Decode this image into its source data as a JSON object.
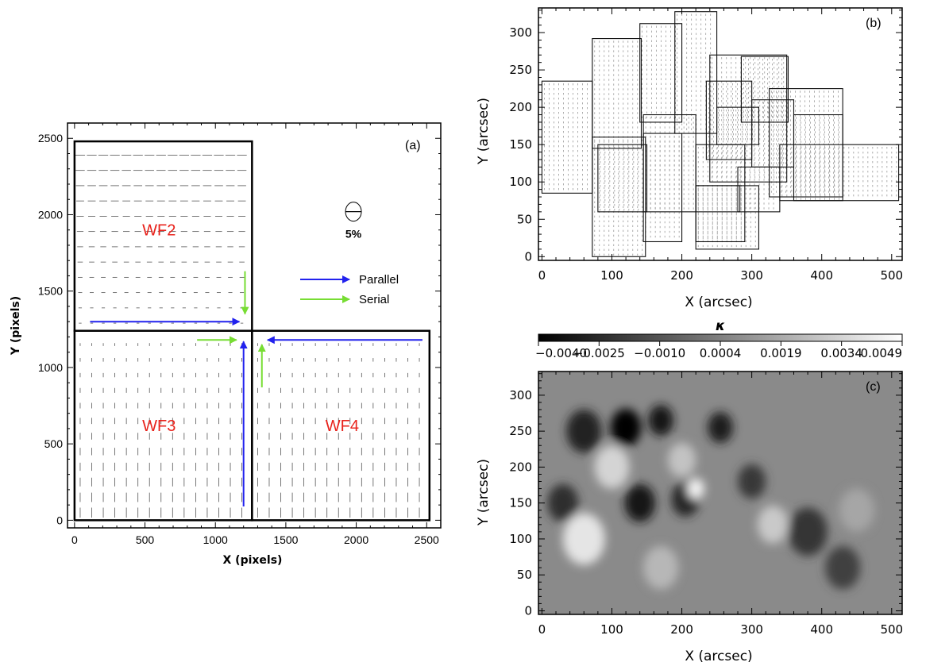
{
  "chart_data": [
    {
      "panel_label": "(a)",
      "type": "vector_field",
      "xlabel": "X (pixels)",
      "ylabel": "Y (pixels)",
      "xlim": [
        -50,
        2600
      ],
      "ylim": [
        -50,
        2600
      ],
      "xticks": [
        0,
        500,
        1000,
        1500,
        2000,
        2500
      ],
      "yticks": [
        0,
        500,
        1000,
        1500,
        2000,
        2500
      ],
      "regions": [
        {
          "name": "WF2",
          "x0": 0,
          "x1": 1260,
          "y0": 1240,
          "y1": 2480,
          "label_at": [
            600,
            1900
          ]
        },
        {
          "name": "WF3",
          "x0": 0,
          "x1": 1260,
          "y0": 0,
          "y1": 1240,
          "label_at": [
            600,
            620
          ]
        },
        {
          "name": "WF4",
          "x0": 1260,
          "x1": 2520,
          "y0": 0,
          "y1": 1240,
          "label_at": [
            1900,
            620
          ]
        }
      ],
      "region_color": "#e8221b",
      "scale_marker": {
        "label": "5%",
        "x": 1980,
        "y": 2020
      },
      "legend": [
        {
          "label": "Parallel",
          "color": "#2222ee"
        },
        {
          "label": "Serial",
          "color": "#77dd33"
        }
      ],
      "arrows": [
        {
          "kind": "Parallel",
          "from": [
            110,
            1300
          ],
          "to": [
            1170,
            1300
          ]
        },
        {
          "kind": "Parallel",
          "from": [
            2470,
            1180
          ],
          "to": [
            1370,
            1180
          ]
        },
        {
          "kind": "Parallel",
          "from": [
            1200,
            90
          ],
          "to": [
            1200,
            1170
          ]
        },
        {
          "kind": "Serial",
          "from": [
            1210,
            1630
          ],
          "to": [
            1210,
            1350
          ]
        },
        {
          "kind": "Serial",
          "from": [
            870,
            1180
          ],
          "to": [
            1150,
            1180
          ]
        },
        {
          "kind": "Serial",
          "from": [
            1330,
            870
          ],
          "to": [
            1330,
            1150
          ]
        }
      ]
    },
    {
      "panel_label": "(b)",
      "type": "pointing_layout",
      "xlabel": "X (arcsec)",
      "ylabel": "Y (arcsec)",
      "xlim": [
        -5,
        515
      ],
      "ylim": [
        -5,
        333
      ],
      "xticks": [
        0,
        100,
        200,
        300,
        400,
        500
      ],
      "yticks": [
        0,
        50,
        100,
        150,
        200,
        250,
        300
      ],
      "pointings": [
        [
          0,
          85,
          72,
          235
        ],
        [
          72,
          145,
          142,
          292
        ],
        [
          72,
          0,
          148,
          160
        ],
        [
          140,
          180,
          200,
          312
        ],
        [
          145,
          20,
          200,
          165
        ],
        [
          190,
          165,
          250,
          328
        ],
        [
          145,
          60,
          220,
          190
        ],
        [
          220,
          60,
          283,
          95
        ],
        [
          220,
          20,
          290,
          150
        ],
        [
          235,
          130,
          300,
          235
        ],
        [
          250,
          150,
          310,
          200
        ],
        [
          285,
          180,
          352,
          268
        ],
        [
          300,
          120,
          360,
          210
        ],
        [
          325,
          80,
          430,
          225
        ],
        [
          340,
          75,
          510,
          150
        ],
        [
          240,
          100,
          350,
          270
        ],
        [
          360,
          75,
          430,
          190
        ],
        [
          280,
          60,
          340,
          120
        ],
        [
          220,
          10,
          310,
          95
        ],
        [
          80,
          60,
          150,
          150
        ]
      ]
    },
    {
      "panel_label": "(c)",
      "type": "heatmap",
      "xlabel": "X (arcsec)",
      "ylabel": "Y (arcsec)",
      "colorbar_label": "κ",
      "colorbar_ticks": [
        "−0.0040",
        "−0.0025",
        "−0.0010",
        "0.0004",
        "0.0019",
        "0.0034",
        "0.0049"
      ],
      "vmin": -0.004,
      "vmax": 0.0049,
      "xlim": [
        -5,
        515
      ],
      "ylim": [
        -5,
        333
      ],
      "xticks": [
        0,
        100,
        200,
        300,
        400,
        500
      ],
      "yticks": [
        0,
        50,
        100,
        150,
        200,
        250,
        300
      ],
      "features": [
        {
          "x": 120,
          "y": 255,
          "r": 22,
          "kappa": -0.0038
        },
        {
          "x": 170,
          "y": 265,
          "r": 18,
          "kappa": -0.0032
        },
        {
          "x": 60,
          "y": 250,
          "r": 25,
          "kappa": -0.0028
        },
        {
          "x": 255,
          "y": 255,
          "r": 18,
          "kappa": -0.003
        },
        {
          "x": 140,
          "y": 150,
          "r": 22,
          "kappa": -0.0032
        },
        {
          "x": 205,
          "y": 155,
          "r": 20,
          "kappa": -0.0026
        },
        {
          "x": 30,
          "y": 150,
          "r": 22,
          "kappa": -0.0024
        },
        {
          "x": 380,
          "y": 110,
          "r": 28,
          "kappa": -0.0022
        },
        {
          "x": 300,
          "y": 180,
          "r": 20,
          "kappa": -0.002
        },
        {
          "x": 220,
          "y": 170,
          "r": 12,
          "kappa": 0.0045
        },
        {
          "x": 60,
          "y": 100,
          "r": 30,
          "kappa": 0.004
        },
        {
          "x": 100,
          "y": 200,
          "r": 25,
          "kappa": 0.0034
        },
        {
          "x": 200,
          "y": 210,
          "r": 20,
          "kappa": 0.0028
        },
        {
          "x": 330,
          "y": 120,
          "r": 22,
          "kappa": 0.003
        },
        {
          "x": 450,
          "y": 140,
          "r": 25,
          "kappa": 0.0018
        },
        {
          "x": 170,
          "y": 60,
          "r": 25,
          "kappa": 0.0024
        },
        {
          "x": 430,
          "y": 60,
          "r": 25,
          "kappa": -0.0018
        }
      ]
    }
  ]
}
